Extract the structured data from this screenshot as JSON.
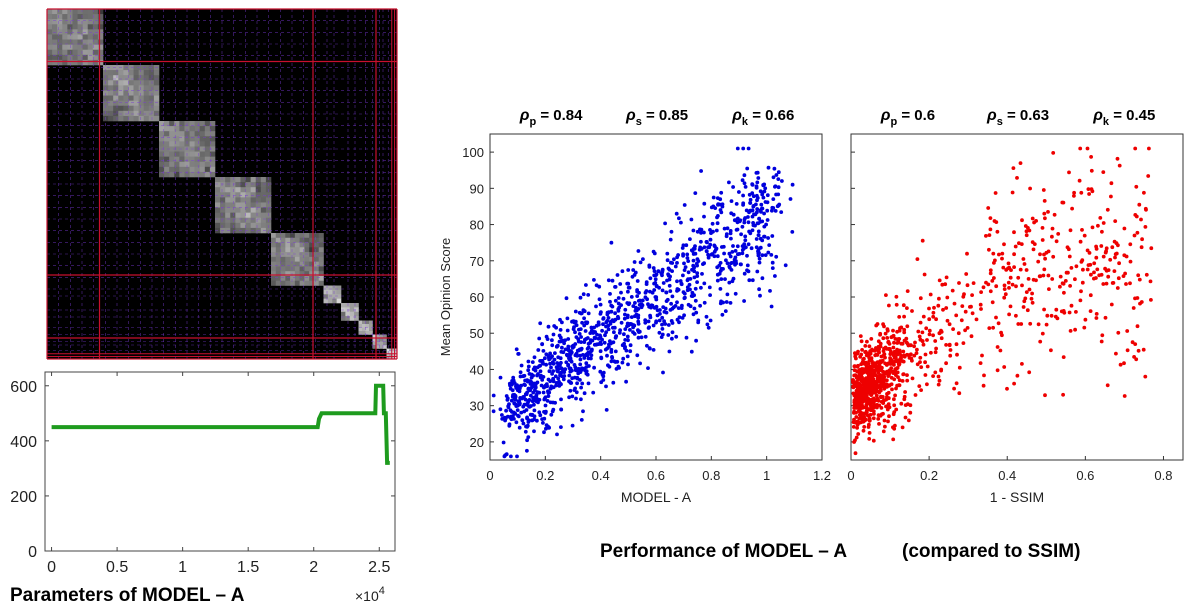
{
  "colors": {
    "grid_line_red": "#c8102e",
    "grid_line_purple": "#7a3ad8",
    "matrix_bg": "#000000",
    "line_green": "#1e9b1e",
    "scatter_blue": "#0000dd",
    "scatter_red": "#ee0000"
  },
  "captions": {
    "parameters": "Parameters of MODEL – A",
    "performance": "Performance of MODEL – A",
    "compared": "(compared to SSIM)"
  },
  "chart_data": [
    {
      "id": "similarity-matrix",
      "type": "heatmap",
      "title": "",
      "description_of_blocks": "block-diagonal matrix",
      "major_block_boundaries": [
        0.0,
        0.15,
        0.76,
        0.94,
        1.0
      ],
      "diagonal_blocks": [
        {
          "start": 0.0,
          "end": 0.16,
          "intensity": 0.55
        },
        {
          "start": 0.16,
          "end": 0.32,
          "intensity": 0.55
        },
        {
          "start": 0.32,
          "end": 0.48,
          "intensity": 0.55
        },
        {
          "start": 0.48,
          "end": 0.64,
          "intensity": 0.55
        },
        {
          "start": 0.64,
          "end": 0.79,
          "intensity": 0.55
        },
        {
          "start": 0.79,
          "end": 0.84,
          "intensity": 0.7
        },
        {
          "start": 0.84,
          "end": 0.89,
          "intensity": 0.7
        },
        {
          "start": 0.89,
          "end": 0.93,
          "intensity": 0.7
        },
        {
          "start": 0.93,
          "end": 0.97,
          "intensity": 0.7
        },
        {
          "start": 0.97,
          "end": 1.0,
          "intensity": 0.8
        }
      ]
    },
    {
      "id": "parameters-line",
      "type": "line",
      "title": "",
      "xlabel": "",
      "ylabel": "",
      "xlim": [
        -500,
        26200
      ],
      "ylim": [
        0,
        650
      ],
      "xticks": [
        0,
        5000,
        10000,
        15000,
        20000,
        25000
      ],
      "xtick_labels": [
        "0",
        "0.5",
        "1",
        "1.5",
        "2",
        "2.5"
      ],
      "x_exponent": "×10",
      "x_exponent_power": "4",
      "yticks": [
        0,
        200,
        400,
        600
      ],
      "ytick_labels": [
        "0",
        "200",
        "400",
        "600"
      ],
      "series": [
        {
          "name": "parameters",
          "x": [
            0,
            20300,
            20400,
            20600,
            24700,
            24750,
            25300,
            25350,
            25450,
            25500,
            25600,
            25650,
            25800
          ],
          "y": [
            450,
            450,
            480,
            500,
            500,
            600,
            600,
            500,
            500,
            500,
            320,
            320,
            320
          ]
        }
      ]
    },
    {
      "id": "model-a-scatter",
      "type": "scatter",
      "title": "",
      "xlabel": "MODEL - A",
      "ylabel": "Mean Opinion Score",
      "xlim": [
        0,
        1.2
      ],
      "ylim": [
        15,
        105
      ],
      "xticks": [
        0,
        0.2,
        0.4,
        0.6,
        0.8,
        1,
        1.2
      ],
      "xtick_labels": [
        "0",
        "0.2",
        "0.4",
        "0.6",
        "0.8",
        "1",
        "1.2"
      ],
      "yticks": [
        20,
        30,
        40,
        50,
        60,
        70,
        80,
        90,
        100
      ],
      "ytick_labels": [
        "20",
        "30",
        "40",
        "50",
        "60",
        "70",
        "80",
        "90",
        "100"
      ],
      "stats": [
        {
          "sym": "ρ",
          "sub": "p",
          "value": "= 0.84"
        },
        {
          "sym": "ρ",
          "sub": "s",
          "value": "= 0.85"
        },
        {
          "sym": "ρ",
          "sub": "k",
          "value": "= 0.66"
        }
      ],
      "point_count": 1200,
      "trend": {
        "x": [
          0.05,
          1.1
        ],
        "y": [
          30,
          85
        ],
        "spread": 7
      }
    },
    {
      "id": "ssim-scatter",
      "type": "scatter",
      "title": "",
      "xlabel": "1 - SSIM",
      "ylabel": "",
      "xlim": [
        0,
        0.85
      ],
      "ylim": [
        15,
        105
      ],
      "xticks": [
        0,
        0.2,
        0.4,
        0.6,
        0.8
      ],
      "xtick_labels": [
        "0",
        "0.2",
        "0.4",
        "0.6",
        "0.8"
      ],
      "yticks": [],
      "stats": [
        {
          "sym": "ρ",
          "sub": "p",
          "value": "= 0.6"
        },
        {
          "sym": "ρ",
          "sub": "s",
          "value": "= 0.63"
        },
        {
          "sym": "ρ",
          "sub": "k",
          "value": "= 0.45"
        }
      ],
      "point_count": 1100,
      "trend": {
        "x": [
          0.0,
          0.85
        ],
        "y": [
          35,
          70
        ],
        "spread": 12
      }
    }
  ]
}
